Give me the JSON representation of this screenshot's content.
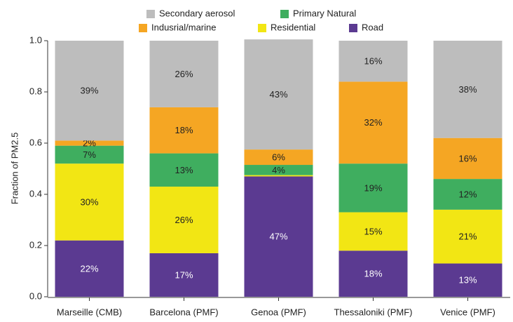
{
  "chart_data": {
    "type": "stacked-bar",
    "y_label": "Fraction of PM2.5",
    "categories": [
      "Marseille (CMB)",
      "Barcelona (PMF)",
      "Genoa (PMF)",
      "Thessaloniki (PMF)",
      "Venice (PMF)"
    ],
    "series": [
      {
        "name": "Road",
        "color": "#5b3a91",
        "values": [
          0.22,
          0.17,
          0.47,
          0.18,
          0.13
        ],
        "value_labels": [
          "22%",
          "17%",
          "47%",
          "18%",
          "13%"
        ]
      },
      {
        "name": "Residential",
        "color": "#f2e614",
        "values": [
          0.3,
          0.26,
          0.005,
          0.15,
          0.21
        ],
        "value_labels": [
          "30%",
          "26%",
          null,
          "15%",
          "21%"
        ]
      },
      {
        "name": "Primary Natural",
        "color": "#3fae5f",
        "values": [
          0.07,
          0.13,
          0.04,
          0.19,
          0.12
        ],
        "value_labels": [
          "7%",
          "13%",
          "4%",
          "19%",
          "12%"
        ]
      },
      {
        "name": "Indusrial/marine",
        "color": "#f5a623",
        "values": [
          0.02,
          0.18,
          0.06,
          0.32,
          0.16
        ],
        "value_labels": [
          "2%",
          "18%",
          "6%",
          "32%",
          "16%"
        ]
      },
      {
        "name": "Secondary aerosol",
        "color": "#bdbdbd",
        "values": [
          0.39,
          0.26,
          0.43,
          0.16,
          0.38
        ],
        "value_labels": [
          "39%",
          "26%",
          "43%",
          "16%",
          "38%"
        ]
      }
    ],
    "ylim": [
      0,
      1
    ],
    "yticks": [
      {
        "value": 0,
        "label": "0.0"
      },
      0.2,
      0.4,
      0.6,
      0.8,
      {
        "value": 1,
        "label": "1.0"
      }
    ]
  }
}
